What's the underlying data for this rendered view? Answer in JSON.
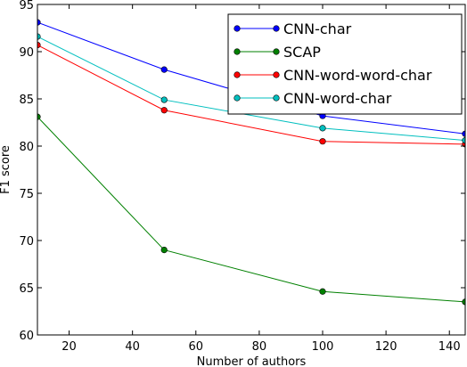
{
  "chart_data": {
    "type": "line",
    "title": "",
    "xlabel": "Number of authors",
    "ylabel": "F1 score",
    "xlim": [
      10,
      145
    ],
    "ylim": [
      60,
      95
    ],
    "xticks": [
      20,
      40,
      60,
      80,
      100,
      120,
      140
    ],
    "yticks": [
      60,
      65,
      70,
      75,
      80,
      85,
      90,
      95
    ],
    "x": [
      10,
      50,
      100,
      145
    ],
    "legend": "top-right",
    "grid": false,
    "series": [
      {
        "name": "CNN-char",
        "color": "#0000ff",
        "values": [
          93.1,
          88.1,
          83.2,
          81.3
        ]
      },
      {
        "name": "SCAP",
        "color": "#008000",
        "values": [
          83.1,
          69.0,
          64.6,
          63.5
        ]
      },
      {
        "name": "CNN-word-word-char",
        "color": "#ff0000",
        "values": [
          90.7,
          83.8,
          80.5,
          80.2
        ]
      },
      {
        "name": "CNN-word-char",
        "color": "#00bfbf",
        "values": [
          91.6,
          84.9,
          81.9,
          80.6
        ]
      }
    ]
  }
}
